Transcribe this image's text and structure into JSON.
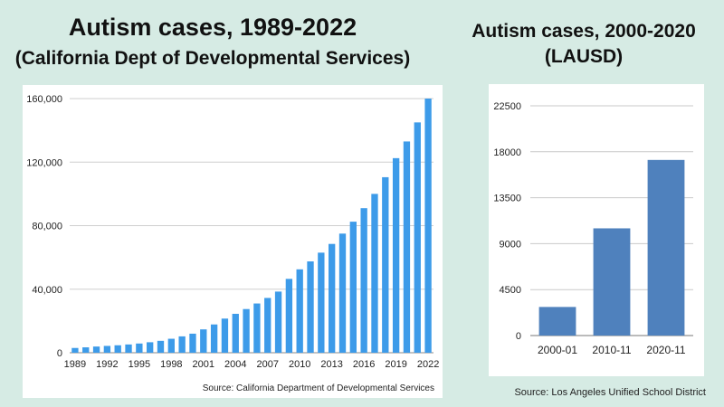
{
  "titles": {
    "left_title": "Autism cases, 1989-2022",
    "left_subtitle": "(California Dept of Developmental Services)",
    "right_title": "Autism cases, 2000-2020",
    "right_subtitle": "(LAUSD)"
  },
  "sources": {
    "left": "Source: California Department of Developmental Services",
    "right": "Source: Los Angeles Unified School District"
  },
  "colors": {
    "left_bar": "#3d9be9",
    "right_bar": "#4f81bd",
    "background": "#d6ebe4"
  },
  "chart_data": [
    {
      "type": "bar",
      "title": "Autism cases, 1989-2022",
      "subtitle": "(California Dept of Developmental Services)",
      "categories": [
        1989,
        1990,
        1991,
        1992,
        1993,
        1994,
        1995,
        1996,
        1997,
        1998,
        1999,
        2000,
        2001,
        2002,
        2003,
        2004,
        2005,
        2006,
        2007,
        2008,
        2009,
        2010,
        2011,
        2012,
        2013,
        2014,
        2015,
        2016,
        2017,
        2018,
        2019,
        2020,
        2021,
        2022
      ],
      "tick_labels": [
        "1989",
        "1992",
        "1995",
        "1998",
        "2001",
        "2004",
        "2007",
        "2010",
        "2013",
        "2016",
        "2019",
        "2022"
      ],
      "values": [
        3000,
        3400,
        3900,
        4300,
        4700,
        5200,
        5800,
        6600,
        7500,
        8800,
        10300,
        12000,
        14700,
        17800,
        21500,
        24500,
        27500,
        31000,
        34500,
        38500,
        46500,
        52500,
        57500,
        63000,
        68500,
        75000,
        82500,
        91000,
        100000,
        110500,
        122500,
        133000,
        145000,
        160000
      ],
      "ylim": [
        0,
        160000
      ],
      "yticks": [
        "0",
        "40,000",
        "80,000",
        "120,000",
        "160,000"
      ],
      "ytick_values": [
        0,
        40000,
        80000,
        120000,
        160000
      ],
      "grid": true,
      "xlabel": "",
      "ylabel": ""
    },
    {
      "type": "bar",
      "title": "Autism cases, 2000-2020",
      "subtitle": "(LAUSD)",
      "categories": [
        "2000-01",
        "2010-11",
        "2020-11"
      ],
      "values": [
        2800,
        10500,
        17200
      ],
      "ylim": [
        0,
        22500
      ],
      "yticks": [
        "0",
        "4500",
        "9000",
        "13500",
        "18000",
        "22500"
      ],
      "ytick_values": [
        0,
        4500,
        9000,
        13500,
        18000,
        22500
      ],
      "grid": true,
      "xlabel": "",
      "ylabel": ""
    }
  ]
}
